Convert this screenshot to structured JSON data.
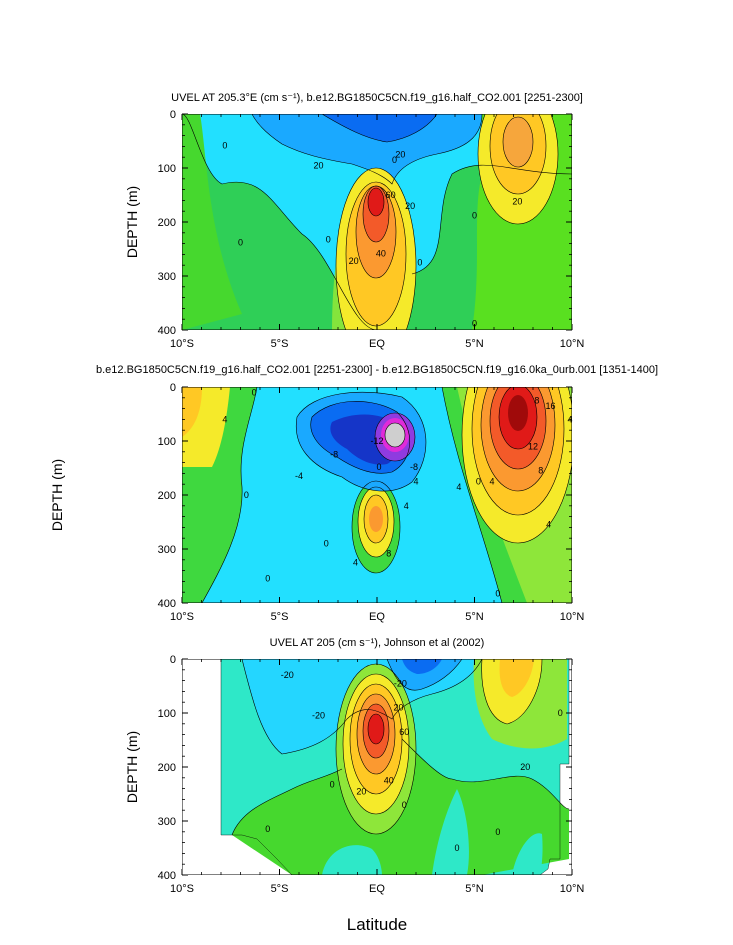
{
  "chart_data": [
    {
      "type": "contour",
      "title": "UVEL AT 205.3°E (cm s⁻¹), b.e12.BG1850C5CN.f19_g16.half_CO2.001 [2251-2300]",
      "ylabel": "DEPTH (m)",
      "xlim": [
        -10,
        10
      ],
      "ylim": [
        400,
        0
      ],
      "xticks": [
        "10°S",
        "5°S",
        "EQ",
        "5°N",
        "10°N"
      ],
      "yticks": [
        "0",
        "100",
        "200",
        "300",
        "400"
      ],
      "contour_labels": [
        {
          "text": "0",
          "lat": -7.8,
          "depth": 58
        },
        {
          "text": "20",
          "lat": -3.0,
          "depth": 95
        },
        {
          "text": "20",
          "lat": 1.2,
          "depth": 75
        },
        {
          "text": "0",
          "lat": 0.9,
          "depth": 85
        },
        {
          "text": "60",
          "lat": 0.7,
          "depth": 150
        },
        {
          "text": "20",
          "lat": 1.7,
          "depth": 170
        },
        {
          "text": "0",
          "lat": -7.0,
          "depth": 238
        },
        {
          "text": "0",
          "lat": -2.5,
          "depth": 232
        },
        {
          "text": "40",
          "lat": 0.2,
          "depth": 258
        },
        {
          "text": "20",
          "lat": -1.2,
          "depth": 272
        },
        {
          "text": "0",
          "lat": 2.2,
          "depth": 275
        },
        {
          "text": "0",
          "lat": 5.0,
          "depth": 188
        },
        {
          "text": "20",
          "lat": 7.2,
          "depth": 162
        },
        {
          "text": "0",
          "lat": 5.0,
          "depth": 388
        }
      ],
      "peaks": [
        {
          "lat": 0.1,
          "depth": 160,
          "value": 65,
          "sign": "east"
        },
        {
          "lat": 7.3,
          "depth": 45,
          "value": 30,
          "sign": "east"
        },
        {
          "lat": 0.6,
          "depth": 20,
          "value": -30,
          "sign": "west"
        }
      ]
    },
    {
      "type": "contour",
      "title": "b.e12.BG1850C5CN.f19_g16.half_CO2.001 [2251-2300] - b.e12.BG1850C5CN.f19_g16.0ka_0urb.001 [1351-1400]",
      "ylabel": "DEPTH (m)",
      "xlim": [
        -10,
        10
      ],
      "ylim": [
        400,
        0
      ],
      "xticks": [
        "10°S",
        "5°S",
        "EQ",
        "5°N",
        "10°N"
      ],
      "yticks": [
        "0",
        "100",
        "200",
        "300",
        "400"
      ],
      "contour_labels": [
        {
          "text": "0",
          "lat": -6.3,
          "depth": 10
        },
        {
          "text": "4",
          "lat": -7.8,
          "depth": 60
        },
        {
          "text": "-8",
          "lat": -2.2,
          "depth": 125
        },
        {
          "text": "-4",
          "lat": -4.0,
          "depth": 165
        },
        {
          "text": "-12",
          "lat": 0.0,
          "depth": 100
        },
        {
          "text": "-8",
          "lat": 1.9,
          "depth": 148
        },
        {
          "text": "0",
          "lat": 0.1,
          "depth": 148
        },
        {
          "text": "4",
          "lat": 2.0,
          "depth": 175
        },
        {
          "text": "4",
          "lat": 4.2,
          "depth": 185
        },
        {
          "text": "0",
          "lat": -6.7,
          "depth": 200
        },
        {
          "text": "4",
          "lat": 1.5,
          "depth": 220
        },
        {
          "text": "8",
          "lat": 0.6,
          "depth": 308
        },
        {
          "text": "4",
          "lat": -1.1,
          "depth": 325
        },
        {
          "text": "0",
          "lat": -2.6,
          "depth": 290
        },
        {
          "text": "0",
          "lat": -5.6,
          "depth": 355
        },
        {
          "text": "0",
          "lat": 5.2,
          "depth": 175
        },
        {
          "text": "4",
          "lat": 5.9,
          "depth": 175
        },
        {
          "text": "8",
          "lat": 8.2,
          "depth": 25
        },
        {
          "text": "16",
          "lat": 8.9,
          "depth": 35
        },
        {
          "text": "12",
          "lat": 8.0,
          "depth": 110
        },
        {
          "text": "8",
          "lat": 8.4,
          "depth": 155
        },
        {
          "text": "4",
          "lat": 8.8,
          "depth": 255
        },
        {
          "text": "4",
          "lat": 9.9,
          "depth": 60
        },
        {
          "text": "0",
          "lat": 6.2,
          "depth": 382
        }
      ],
      "peaks": [
        {
          "lat": 1.1,
          "depth": 92,
          "value": -24,
          "sign": "west"
        },
        {
          "lat": 7.5,
          "depth": 45,
          "value": 22,
          "sign": "east"
        },
        {
          "lat": 0.0,
          "depth": 260,
          "value": 11,
          "sign": "east"
        },
        {
          "lat": -9.0,
          "depth": 60,
          "value": 6,
          "sign": "east"
        }
      ]
    },
    {
      "type": "contour",
      "title": "UVEL AT 205 (cm s⁻¹), Johnson et al (2002)",
      "ylabel": "DEPTH (m)",
      "xlabel": "Latitude",
      "xlim": [
        -10,
        10
      ],
      "ylim": [
        400,
        0
      ],
      "xticks": [
        "10°S",
        "5°S",
        "EQ",
        "5°N",
        "10°N"
      ],
      "yticks": [
        "0",
        "100",
        "200",
        "300",
        "400"
      ],
      "data_coverage": {
        "lat_min": -8,
        "lat_max": 9.8
      },
      "contour_labels": [
        {
          "text": "-20",
          "lat": -4.6,
          "depth": 30
        },
        {
          "text": "-20",
          "lat": -3.0,
          "depth": 105
        },
        {
          "text": "-20",
          "lat": 1.2,
          "depth": 45
        },
        {
          "text": "20",
          "lat": 1.1,
          "depth": 90
        },
        {
          "text": "60",
          "lat": 1.4,
          "depth": 135
        },
        {
          "text": "40",
          "lat": 0.6,
          "depth": 225
        },
        {
          "text": "20",
          "lat": -0.8,
          "depth": 245
        },
        {
          "text": "0",
          "lat": -2.3,
          "depth": 232
        },
        {
          "text": "0",
          "lat": 1.4,
          "depth": 270
        },
        {
          "text": "0",
          "lat": -5.6,
          "depth": 315
        },
        {
          "text": "0",
          "lat": 4.1,
          "depth": 350
        },
        {
          "text": "0",
          "lat": 6.2,
          "depth": 320
        },
        {
          "text": "20",
          "lat": 7.6,
          "depth": 200
        },
        {
          "text": "0",
          "lat": 9.4,
          "depth": 100
        }
      ],
      "peaks": [
        {
          "lat": 0.0,
          "depth": 130,
          "value": 75,
          "sign": "east"
        },
        {
          "lat": 7.2,
          "depth": 60,
          "value": 28,
          "sign": "east"
        },
        {
          "lat": 1.8,
          "depth": 20,
          "value": -30,
          "sign": "west"
        }
      ]
    }
  ]
}
